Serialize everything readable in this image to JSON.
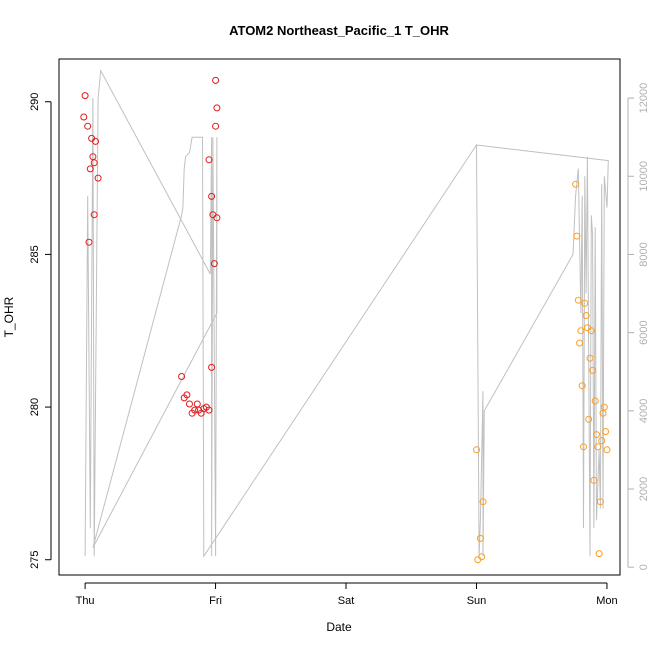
{
  "chart_data": {
    "type": "scatter",
    "title": "ATOM2 Northeast_Pacific_1 T_OHR",
    "xlabel": "Date",
    "ylabel": "T_OHR",
    "x_ticks": [
      "Thu",
      "Fri",
      "Sat",
      "Sun",
      "Mon"
    ],
    "xlim_days": [
      -0.2,
      4.1
    ],
    "ylim": [
      274.5,
      291.4
    ],
    "y_ticks": [
      275,
      280,
      285,
      290
    ],
    "y2_ticks": [
      0,
      2000,
      4000,
      6000,
      8000,
      10000,
      12000
    ],
    "y2lim": [
      -200,
      13000
    ],
    "grid": false,
    "series": [
      {
        "color": "#e41a1c",
        "points": [
          [
            0.0,
            290.2
          ],
          [
            -0.01,
            289.5
          ],
          [
            0.02,
            289.2
          ],
          [
            0.05,
            288.8
          ],
          [
            0.08,
            288.7
          ],
          [
            0.06,
            288.2
          ],
          [
            0.07,
            288.0
          ],
          [
            0.04,
            287.8
          ],
          [
            0.1,
            287.5
          ],
          [
            0.07,
            286.3
          ],
          [
            0.03,
            285.4
          ],
          [
            0.74,
            281.0
          ],
          [
            0.76,
            280.3
          ],
          [
            0.78,
            280.4
          ],
          [
            0.8,
            280.1
          ],
          [
            0.82,
            279.8
          ],
          [
            0.84,
            279.9
          ],
          [
            0.86,
            280.1
          ],
          [
            0.87,
            279.9
          ],
          [
            0.89,
            279.8
          ],
          [
            0.91,
            279.95
          ],
          [
            0.93,
            280.0
          ],
          [
            0.95,
            279.9
          ],
          [
            0.97,
            281.3
          ],
          [
            0.95,
            288.1
          ],
          [
            0.97,
            286.9
          ],
          [
            0.98,
            286.3
          ],
          [
            0.99,
            284.7
          ],
          [
            1.0,
            290.7
          ],
          [
            1.01,
            289.8
          ],
          [
            1.0,
            289.2
          ],
          [
            1.01,
            286.2
          ]
        ]
      },
      {
        "color": "#ff9d1c",
        "points": [
          [
            3.0,
            278.6
          ],
          [
            3.01,
            275.0
          ],
          [
            3.03,
            275.7
          ],
          [
            3.04,
            275.1
          ],
          [
            3.05,
            276.9
          ],
          [
            3.76,
            287.3
          ],
          [
            3.77,
            285.6
          ],
          [
            3.78,
            283.5
          ],
          [
            3.79,
            282.1
          ],
          [
            3.8,
            282.5
          ],
          [
            3.81,
            280.7
          ],
          [
            3.82,
            278.7
          ],
          [
            3.83,
            283.4
          ],
          [
            3.84,
            283.0
          ],
          [
            3.85,
            282.6
          ],
          [
            3.86,
            279.6
          ],
          [
            3.87,
            281.6
          ],
          [
            3.88,
            282.5
          ],
          [
            3.89,
            281.2
          ],
          [
            3.9,
            277.6
          ],
          [
            3.91,
            280.2
          ],
          [
            3.92,
            279.1
          ],
          [
            3.93,
            278.7
          ],
          [
            3.94,
            275.2
          ],
          [
            3.95,
            276.9
          ],
          [
            3.96,
            278.9
          ],
          [
            3.97,
            279.8
          ],
          [
            3.98,
            280.0
          ],
          [
            3.99,
            279.2
          ],
          [
            4.0,
            278.6
          ]
        ]
      }
    ],
    "secondary_line": {
      "color": "#c0c0c0",
      "y_axis": "right",
      "points": [
        [
          0.0,
          280
        ],
        [
          0.02,
          9500
        ],
        [
          0.04,
          1000
        ],
        [
          0.06,
          12000
        ],
        [
          0.07,
          280
        ],
        [
          0.1,
          12000
        ],
        [
          0.12,
          12700
        ],
        [
          0.96,
          7500
        ],
        [
          0.97,
          11000
        ],
        [
          0.97,
          280
        ],
        [
          0.98,
          11000
        ],
        [
          1.0,
          280
        ],
        [
          1.01,
          11000
        ],
        [
          1.01,
          6500
        ],
        [
          0.06,
          500
        ],
        [
          0.74,
          9000
        ],
        [
          0.75,
          9200
        ],
        [
          0.76,
          10200
        ],
        [
          0.77,
          10500
        ],
        [
          0.8,
          10600
        ],
        [
          0.82,
          11000
        ],
        [
          0.9,
          11000
        ],
        [
          0.91,
          280
        ],
        [
          3.0,
          10800
        ],
        [
          3.02,
          280
        ],
        [
          3.03,
          1200
        ],
        [
          3.05,
          4500
        ],
        [
          3.05,
          280
        ],
        [
          3.06,
          4000
        ],
        [
          3.74,
          8000
        ],
        [
          3.76,
          9500
        ],
        [
          3.78,
          10200
        ],
        [
          3.8,
          6500
        ],
        [
          3.81,
          9500
        ],
        [
          3.82,
          1000
        ],
        [
          3.83,
          10000
        ],
        [
          3.84,
          7000
        ],
        [
          3.85,
          10500
        ],
        [
          3.87,
          280
        ],
        [
          3.88,
          9000
        ],
        [
          3.89,
          8500
        ],
        [
          3.9,
          1000
        ],
        [
          3.91,
          8700
        ],
        [
          3.92,
          1200
        ],
        [
          3.94,
          3000
        ],
        [
          3.95,
          1500
        ],
        [
          3.96,
          9800
        ],
        [
          3.97,
          1500
        ],
        [
          3.98,
          10000
        ],
        [
          4.0,
          9200
        ],
        [
          4.01,
          10400
        ],
        [
          3.0,
          10800
        ]
      ]
    }
  }
}
